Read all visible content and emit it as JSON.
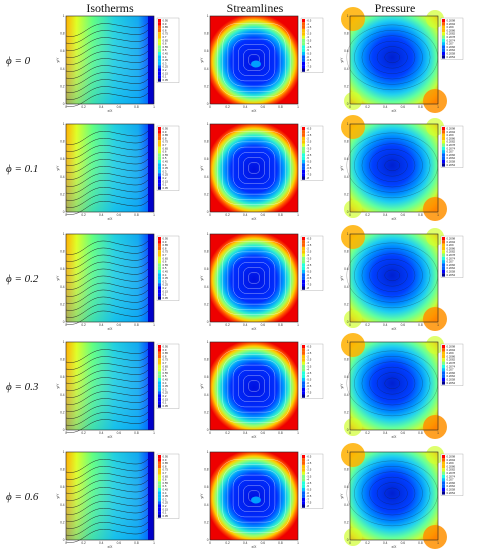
{
  "columns": [
    "Isotherms",
    "Streamlines",
    "Pressure"
  ],
  "rows": [
    {
      "phi": "ϕ = 0"
    },
    {
      "phi": "ϕ = 0.1"
    },
    {
      "phi": "ϕ = 0.2"
    },
    {
      "phi": "ϕ = 0.3"
    },
    {
      "phi": "ϕ = 0.6"
    }
  ],
  "axes": {
    "xlabel": "x/X",
    "ylabel": "y/Y",
    "xticks": [
      "0",
      "0.2",
      "0.4",
      "0.6",
      "0.8",
      "1"
    ],
    "yticks": [
      "0",
      "0.2",
      "0.4",
      "0.6",
      "0.8",
      "1"
    ]
  },
  "legend_values": {
    "isotherms": [
      "0.95",
      "0.9",
      "0.85",
      "0.8",
      "0.75",
      "0.7",
      "0.65",
      "0.6",
      "0.55",
      "0.5",
      "0.45",
      "0.4",
      "0.35",
      "0.3",
      "0.25",
      "0.2",
      "0.15",
      "0.1",
      "0.05"
    ],
    "streamlines": [
      "-0.5",
      "-1",
      "-1.5",
      "-2",
      "-2.5",
      "-3",
      "-3.5",
      "-4",
      "-4.5",
      "-5",
      "-5.5",
      "-6",
      "-6.5",
      "-7",
      "-7.5",
      "-8"
    ],
    "pressure": [
      "0.2098",
      "0.2094",
      "0.209",
      "0.2086",
      "0.2082",
      "0.2078",
      "0.2074",
      "0.207",
      "0.2066",
      "0.2062",
      "0.2058",
      "0.2054"
    ]
  },
  "colors": {
    "cold": "#0000c8",
    "hot": "#e80000",
    "jet": [
      "#00008f",
      "#0000ff",
      "#0060ff",
      "#00bfff",
      "#20ffdf",
      "#80ff80",
      "#dfff20",
      "#ffbf00",
      "#ff6000",
      "#ff0000"
    ]
  }
}
